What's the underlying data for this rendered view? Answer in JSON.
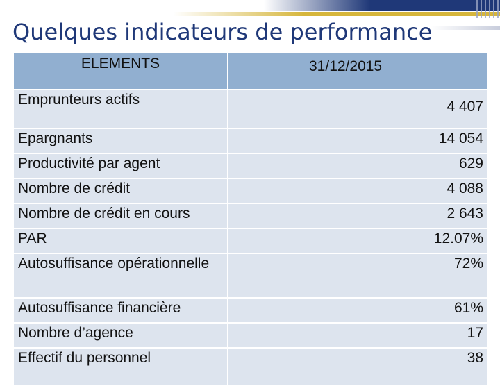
{
  "title": "Quelques indicateurs de performance",
  "table": {
    "headers": [
      "ELEMENTS",
      "31/12/2015"
    ],
    "rows": [
      {
        "label": "Emprunteurs actifs",
        "value": "4 407"
      },
      {
        "label": "Epargnants",
        "value": "14 054"
      },
      {
        "label": "Productivité par agent",
        "value": "629"
      },
      {
        "label": "Nombre de crédit",
        "value": "4 088"
      },
      {
        "label": "Nombre de  crédit en cours",
        "value": "2 643"
      },
      {
        "label": "PAR",
        "value": "12.07%"
      },
      {
        "label": "Autosuffisance opérationnelle",
        "value": "72%"
      },
      {
        "label": "Autosuffisance financière",
        "value": "61%"
      },
      {
        "label": "Nombre d’agence",
        "value": "17"
      },
      {
        "label": "Effectif du personnel",
        "value": "38"
      }
    ]
  },
  "colors": {
    "title": "#1f3878",
    "header_bg": "#91afd0",
    "row_bg": "#dde4ee",
    "banner_navy": "#1f3878",
    "banner_gold": "#d6b63c"
  }
}
